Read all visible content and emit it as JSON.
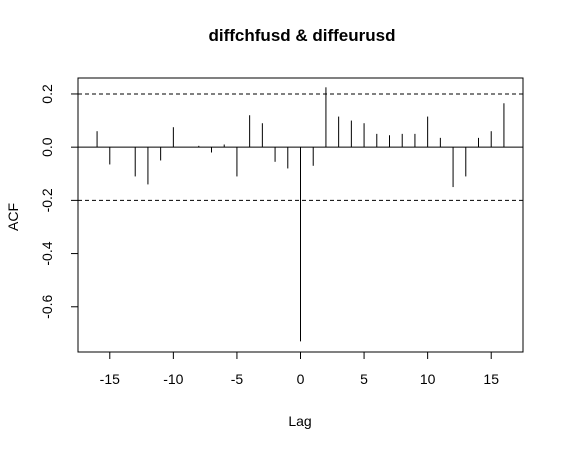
{
  "chart_data": {
    "type": "bar",
    "title": "diffchfusd & diffeurusd",
    "xlabel": "Lag",
    "ylabel": "ACF",
    "xlim": [
      -17.5,
      17.5
    ],
    "ylim": [
      -0.77,
      0.26
    ],
    "x_ticks": [
      -15,
      -10,
      -5,
      0,
      5,
      10,
      15
    ],
    "x_tick_labels": [
      "-15",
      "-10",
      "-5",
      "0",
      "5",
      "10",
      "15"
    ],
    "y_ticks": [
      -0.6,
      -0.4,
      -0.2,
      0.0,
      0.2
    ],
    "y_tick_labels": [
      "-0.6",
      "-0.4",
      "-0.2",
      "0.0",
      "0.2"
    ],
    "confidence_bounds": [
      0.2,
      -0.2
    ],
    "grid": false,
    "series": [
      {
        "lags": [
          -16,
          -15,
          -13,
          -12,
          -11,
          -10,
          -8,
          -7,
          -6,
          -5,
          -4,
          -3,
          -2,
          -1,
          0,
          1,
          2,
          3,
          4,
          5,
          6,
          7,
          8,
          9,
          10,
          11,
          12,
          13,
          14,
          15,
          16
        ],
        "values": [
          0.06,
          -0.065,
          -0.11,
          -0.14,
          -0.05,
          0.075,
          0.005,
          -0.02,
          0.01,
          -0.11,
          0.12,
          0.09,
          -0.055,
          -0.08,
          -0.73,
          -0.07,
          0.225,
          0.115,
          0.1,
          0.09,
          0.05,
          0.045,
          0.05,
          0.05,
          0.115,
          0.035,
          -0.15,
          -0.11,
          0.035,
          0.06,
          0.165
        ]
      }
    ]
  }
}
